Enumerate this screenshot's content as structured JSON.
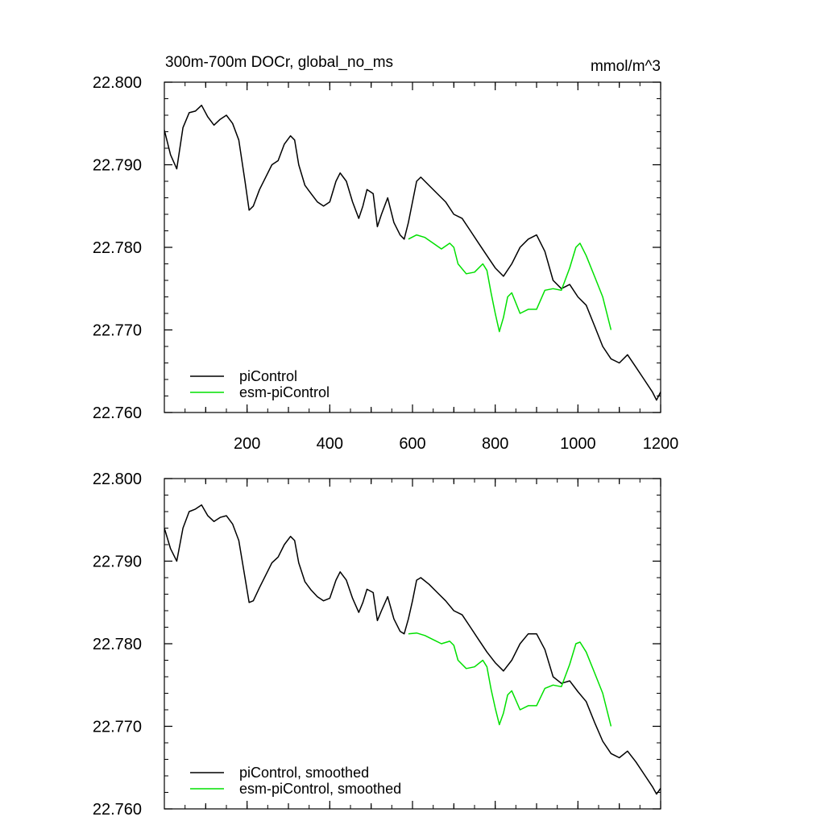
{
  "figure": {
    "title": "300m-700m DOCr, global_no_ms",
    "units": "mmol/m^3"
  },
  "chart_data": [
    {
      "type": "line",
      "panel": "top",
      "title": "300m-700m DOCr, global_no_ms",
      "units": "mmol/m^3",
      "xlabel": "",
      "ylabel": "",
      "xlim": [
        0,
        1200
      ],
      "ylim": [
        22.76,
        22.8
      ],
      "x_ticks": [
        200,
        400,
        600,
        800,
        1000,
        1200
      ],
      "y_ticks": [
        "22.800",
        "22.790",
        "22.780",
        "22.770",
        "22.760"
      ],
      "legend_position": "bottom-left",
      "series": [
        {
          "name": "piControl",
          "color": "#000000",
          "x": [
            0,
            15,
            30,
            45,
            60,
            75,
            90,
            105,
            120,
            135,
            150,
            165,
            180,
            195,
            205,
            215,
            230,
            245,
            260,
            275,
            290,
            305,
            315,
            325,
            340,
            355,
            370,
            385,
            400,
            415,
            425,
            440,
            455,
            470,
            480,
            490,
            505,
            515,
            525,
            540,
            555,
            570,
            580,
            590,
            600,
            610,
            620,
            640,
            660,
            680,
            700,
            720,
            740,
            760,
            780,
            800,
            820,
            840,
            860,
            880,
            900,
            920,
            940,
            960,
            980,
            1000,
            1020,
            1040,
            1060,
            1080,
            1100,
            1120,
            1140,
            1160,
            1180,
            1190,
            1200
          ],
          "y": [
            22.7942,
            22.7912,
            22.7895,
            22.7945,
            22.7963,
            22.7965,
            22.7972,
            22.7958,
            22.7948,
            22.7955,
            22.796,
            22.795,
            22.793,
            22.788,
            22.7845,
            22.785,
            22.787,
            22.7885,
            22.79,
            22.7905,
            22.7925,
            22.7935,
            22.793,
            22.79,
            22.7875,
            22.7865,
            22.7855,
            22.785,
            22.7855,
            22.788,
            22.789,
            22.788,
            22.7855,
            22.7835,
            22.785,
            22.787,
            22.7865,
            22.7825,
            22.784,
            22.786,
            22.783,
            22.7815,
            22.781,
            22.783,
            22.7855,
            22.788,
            22.7885,
            22.7875,
            22.7865,
            22.7855,
            22.784,
            22.7835,
            22.782,
            22.7805,
            22.779,
            22.7775,
            22.7765,
            22.778,
            22.78,
            22.781,
            22.7815,
            22.7795,
            22.776,
            22.775,
            22.7755,
            22.774,
            22.773,
            22.7705,
            22.768,
            22.7665,
            22.766,
            22.767,
            22.7655,
            22.764,
            22.7625,
            22.7615,
            22.7625
          ]
        },
        {
          "name": "esm-piControl",
          "color": "#00e000",
          "x": [
            590,
            610,
            630,
            650,
            670,
            690,
            700,
            710,
            730,
            750,
            770,
            780,
            790,
            800,
            810,
            820,
            830,
            840,
            860,
            880,
            900,
            920,
            940,
            960,
            980,
            995,
            1005,
            1020,
            1040,
            1060,
            1080
          ],
          "y": [
            22.781,
            22.7815,
            22.7812,
            22.7805,
            22.7798,
            22.7805,
            22.78,
            22.778,
            22.7768,
            22.777,
            22.778,
            22.7772,
            22.7745,
            22.772,
            22.7698,
            22.7715,
            22.774,
            22.7745,
            22.772,
            22.7725,
            22.7725,
            22.7748,
            22.775,
            22.7748,
            22.7775,
            22.78,
            22.7805,
            22.779,
            22.7765,
            22.774,
            22.77
          ]
        }
      ]
    },
    {
      "type": "line",
      "panel": "bottom",
      "title": "",
      "xlabel": "",
      "ylabel": "",
      "xlim": [
        0,
        1200
      ],
      "ylim": [
        22.76,
        22.8
      ],
      "x_ticks": [],
      "y_ticks": [
        "22.800",
        "22.790",
        "22.780",
        "22.770",
        "22.760"
      ],
      "legend_position": "bottom-left",
      "series": [
        {
          "name": "piControl, smoothed",
          "color": "#000000",
          "x": [
            0,
            15,
            30,
            45,
            60,
            75,
            90,
            105,
            120,
            135,
            150,
            165,
            180,
            195,
            205,
            215,
            230,
            245,
            260,
            275,
            290,
            305,
            315,
            325,
            340,
            355,
            370,
            385,
            400,
            415,
            425,
            440,
            455,
            470,
            480,
            490,
            505,
            515,
            525,
            540,
            555,
            570,
            580,
            590,
            600,
            610,
            620,
            640,
            660,
            680,
            700,
            720,
            740,
            760,
            780,
            800,
            820,
            840,
            860,
            880,
            900,
            920,
            940,
            960,
            980,
            1000,
            1020,
            1040,
            1060,
            1080,
            1100,
            1120,
            1140,
            1160,
            1180,
            1190,
            1200
          ],
          "y": [
            22.794,
            22.7915,
            22.79,
            22.794,
            22.796,
            22.7963,
            22.7968,
            22.7955,
            22.7948,
            22.7953,
            22.7955,
            22.7945,
            22.7925,
            22.788,
            22.785,
            22.7852,
            22.7868,
            22.7883,
            22.7898,
            22.7905,
            22.792,
            22.793,
            22.7925,
            22.7898,
            22.7875,
            22.7865,
            22.7857,
            22.7852,
            22.7855,
            22.7877,
            22.7887,
            22.7877,
            22.7855,
            22.7838,
            22.785,
            22.7866,
            22.7862,
            22.7828,
            22.784,
            22.7857,
            22.783,
            22.7815,
            22.7812,
            22.783,
            22.7852,
            22.7877,
            22.788,
            22.7872,
            22.7862,
            22.7852,
            22.784,
            22.7835,
            22.782,
            22.7805,
            22.779,
            22.7777,
            22.7767,
            22.778,
            22.78,
            22.7812,
            22.7812,
            22.7793,
            22.776,
            22.7752,
            22.7755,
            22.7742,
            22.773,
            22.7705,
            22.7682,
            22.7667,
            22.7662,
            22.767,
            22.7657,
            22.7642,
            22.7627,
            22.7618,
            22.7625
          ]
        },
        {
          "name": "esm-piControl, smoothed",
          "color": "#00e000",
          "x": [
            590,
            610,
            630,
            650,
            670,
            690,
            700,
            710,
            730,
            750,
            770,
            780,
            790,
            800,
            810,
            820,
            830,
            840,
            860,
            880,
            900,
            920,
            940,
            960,
            980,
            995,
            1005,
            1020,
            1040,
            1060,
            1080
          ],
          "y": [
            22.7812,
            22.7813,
            22.781,
            22.7805,
            22.78,
            22.7803,
            22.7798,
            22.778,
            22.777,
            22.7772,
            22.778,
            22.7772,
            22.7745,
            22.7722,
            22.7702,
            22.7716,
            22.7738,
            22.7743,
            22.772,
            22.7725,
            22.7725,
            22.7746,
            22.775,
            22.7748,
            22.7775,
            22.78,
            22.7802,
            22.779,
            22.7765,
            22.774,
            22.77
          ]
        }
      ]
    }
  ]
}
